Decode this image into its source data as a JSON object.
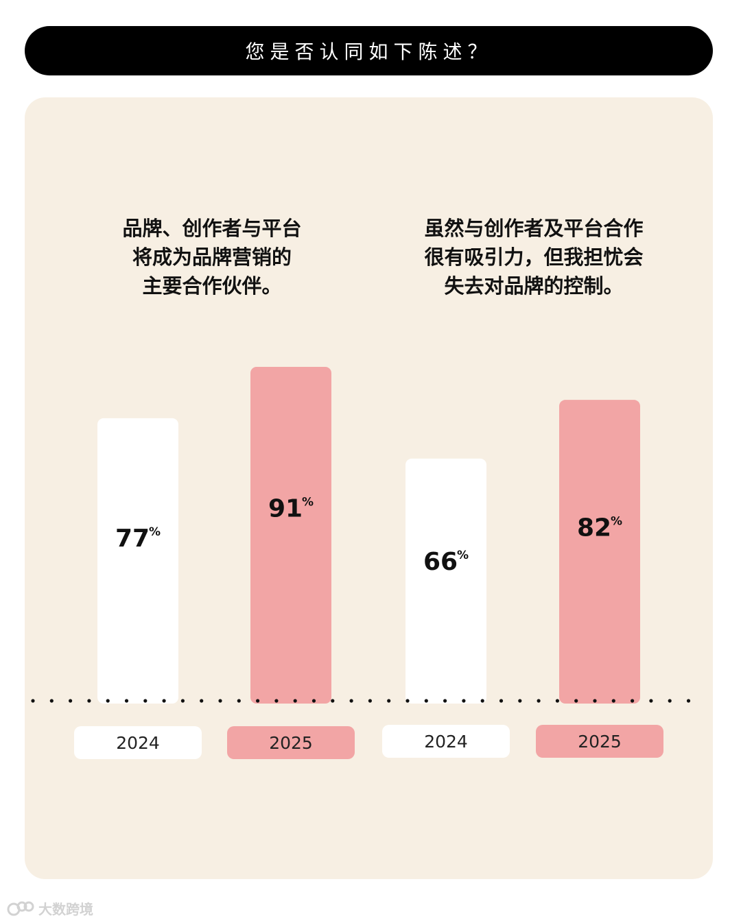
{
  "header": {
    "title": "您是否认同如下陈述？"
  },
  "colors": {
    "panel_bg": "#f7efe3",
    "bar_2024": "#ffffff",
    "bar_2025": "#f2a5a5",
    "text": "#111111"
  },
  "chart_data": {
    "type": "bar",
    "ylim": [
      0,
      100
    ],
    "grid": false,
    "value_suffix": "%",
    "groups": [
      {
        "question_lines": [
          "品牌、创作者与平台",
          "将成为品牌营销的",
          "主要合作伙伴。"
        ],
        "bars": [
          {
            "category": "2024",
            "value": 77,
            "label": "77"
          },
          {
            "category": "2025",
            "value": 91,
            "label": "91"
          }
        ]
      },
      {
        "question_lines": [
          "虽然与创作者及平台合作",
          "很有吸引力，但我担忧会",
          "失去对品牌的控制。"
        ],
        "bars": [
          {
            "category": "2024",
            "value": 66,
            "label": "66"
          },
          {
            "category": "2025",
            "value": 82,
            "label": "82"
          }
        ]
      }
    ]
  },
  "watermark": {
    "text": "大数跨境"
  }
}
